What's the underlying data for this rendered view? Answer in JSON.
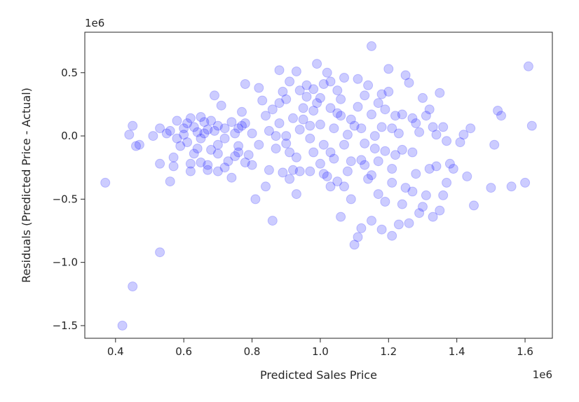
{
  "chart_data": {
    "type": "scatter",
    "title": "",
    "xlabel": "Predicted Sales Price",
    "ylabel": "Residuals (Predicted Price - Actual)",
    "x_offset_label": "1e6",
    "y_offset_label": "1e6",
    "xlim": [
      0.31,
      1.68
    ],
    "ylim": [
      -1.6,
      0.82
    ],
    "xticks": [
      {
        "value": 0.4,
        "label": "0.4"
      },
      {
        "value": 0.6,
        "label": "0.6"
      },
      {
        "value": 0.8,
        "label": "0.8"
      },
      {
        "value": 1.0,
        "label": "1.0"
      },
      {
        "value": 1.2,
        "label": "1.2"
      },
      {
        "value": 1.4,
        "label": "1.4"
      },
      {
        "value": 1.6,
        "label": "1.6"
      }
    ],
    "yticks": [
      {
        "value": 0.5,
        "label": "0.5"
      },
      {
        "value": 0.0,
        "label": "0.0"
      },
      {
        "value": -0.5,
        "label": "−0.5"
      },
      {
        "value": -1.0,
        "label": "−1.0"
      },
      {
        "value": -1.5,
        "label": "−1.5"
      }
    ],
    "grid": false,
    "legend": "none",
    "point_color": "#0000ff",
    "point_alpha": 0.2,
    "series": [
      {
        "points": [
          [
            0.37,
            -0.37
          ],
          [
            0.42,
            -1.5
          ],
          [
            0.45,
            -1.19
          ],
          [
            0.53,
            -0.92
          ],
          [
            0.44,
            0.01
          ],
          [
            0.45,
            0.08
          ],
          [
            0.46,
            -0.08
          ],
          [
            0.47,
            -0.07
          ],
          [
            0.51,
            0.0
          ],
          [
            0.53,
            0.06
          ],
          [
            0.53,
            -0.22
          ],
          [
            0.55,
            0.02
          ],
          [
            0.56,
            0.04
          ],
          [
            0.56,
            -0.36
          ],
          [
            0.57,
            -0.24
          ],
          [
            0.58,
            0.12
          ],
          [
            0.59,
            -0.08
          ],
          [
            0.6,
            0.01
          ],
          [
            0.61,
            0.1
          ],
          [
            0.62,
            -0.22
          ],
          [
            0.62,
            0.14
          ],
          [
            0.63,
            -0.14
          ],
          [
            0.64,
            0.03
          ],
          [
            0.65,
            -0.02
          ],
          [
            0.65,
            -0.21
          ],
          [
            0.66,
            0.11
          ],
          [
            0.67,
            -0.27
          ],
          [
            0.67,
            -0.23
          ],
          [
            0.68,
            -0.11
          ],
          [
            0.69,
            0.04
          ],
          [
            0.69,
            0.32
          ],
          [
            0.7,
            0.08
          ],
          [
            0.7,
            -0.07
          ],
          [
            0.71,
            0.24
          ],
          [
            0.72,
            0.06
          ],
          [
            0.73,
            -0.2
          ],
          [
            0.74,
            -0.33
          ],
          [
            0.74,
            0.11
          ],
          [
            0.75,
            0.02
          ],
          [
            0.76,
            -0.13
          ],
          [
            0.77,
            0.08
          ],
          [
            0.77,
            0.19
          ],
          [
            0.78,
            -0.21
          ],
          [
            0.78,
            0.41
          ],
          [
            0.79,
            -0.15
          ],
          [
            0.6,
            0.06
          ],
          [
            0.61,
            -0.05
          ],
          [
            0.63,
            0.07
          ],
          [
            0.64,
            -0.1
          ],
          [
            0.66,
            0.02
          ],
          [
            0.68,
            0.12
          ],
          [
            0.7,
            -0.14
          ],
          [
            0.72,
            -0.02
          ],
          [
            0.75,
            -0.16
          ],
          [
            0.57,
            -0.17
          ],
          [
            0.58,
            -0.02
          ],
          [
            0.62,
            -0.28
          ],
          [
            0.65,
            0.15
          ],
          [
            0.67,
            0.05
          ],
          [
            0.7,
            -0.28
          ],
          [
            0.72,
            -0.25
          ],
          [
            0.76,
            0.06
          ],
          [
            0.78,
            0.1
          ],
          [
            0.76,
            -0.08
          ],
          [
            0.8,
            -0.23
          ],
          [
            0.8,
            0.02
          ],
          [
            0.81,
            -0.5
          ],
          [
            0.82,
            0.38
          ],
          [
            0.83,
            0.28
          ],
          [
            0.84,
            -0.4
          ],
          [
            0.85,
            0.04
          ],
          [
            0.86,
            -0.67
          ],
          [
            0.86,
            0.21
          ],
          [
            0.87,
            0.0
          ],
          [
            0.88,
            0.52
          ],
          [
            0.88,
            0.1
          ],
          [
            0.89,
            -0.29
          ],
          [
            0.89,
            0.35
          ],
          [
            0.9,
            0.29
          ],
          [
            0.9,
            -0.06
          ],
          [
            0.91,
            0.43
          ],
          [
            0.91,
            -0.34
          ],
          [
            0.92,
            0.14
          ],
          [
            0.92,
            -0.27
          ],
          [
            0.93,
            0.51
          ],
          [
            0.93,
            -0.46
          ],
          [
            0.94,
            0.36
          ],
          [
            0.94,
            -0.28
          ],
          [
            0.95,
            0.13
          ],
          [
            0.95,
            0.22
          ],
          [
            0.96,
            0.4
          ],
          [
            0.97,
            -0.02
          ],
          [
            0.97,
            0.08
          ],
          [
            0.98,
            0.37
          ],
          [
            0.98,
            -0.13
          ],
          [
            0.99,
            0.26
          ],
          [
            0.99,
            0.57
          ],
          [
            1.0,
            -0.22
          ],
          [
            1.0,
            0.09
          ],
          [
            1.01,
            0.41
          ],
          [
            1.01,
            -0.07
          ],
          [
            1.02,
            0.5
          ],
          [
            1.02,
            -0.32
          ],
          [
            1.03,
            0.22
          ],
          [
            1.03,
            0.43
          ],
          [
            1.04,
            -0.18
          ],
          [
            1.04,
            0.06
          ],
          [
            1.05,
            -0.36
          ],
          [
            1.05,
            0.36
          ],
          [
            1.06,
            -0.64
          ],
          [
            1.06,
            0.16
          ],
          [
            1.07,
            -0.4
          ],
          [
            1.07,
            0.46
          ],
          [
            1.08,
            -0.28
          ],
          [
            1.08,
            0.01
          ],
          [
            1.09,
            -0.2
          ],
          [
            1.1,
            -0.86
          ],
          [
            1.1,
            0.08
          ],
          [
            1.11,
            -0.8
          ],
          [
            1.11,
            0.45
          ],
          [
            1.12,
            -0.19
          ],
          [
            1.12,
            -0.73
          ],
          [
            1.13,
            -0.06
          ],
          [
            1.13,
            0.32
          ],
          [
            1.14,
            -0.34
          ],
          [
            1.14,
            0.4
          ],
          [
            1.15,
            0.71
          ],
          [
            1.15,
            -0.67
          ],
          [
            1.16,
            -0.1
          ],
          [
            1.16,
            0.0
          ],
          [
            1.17,
            -0.46
          ],
          [
            1.17,
            0.26
          ],
          [
            1.18,
            -0.74
          ],
          [
            1.18,
            0.07
          ],
          [
            1.19,
            -0.52
          ],
          [
            1.19,
            -0.12
          ],
          [
            1.2,
            0.53
          ],
          [
            1.2,
            0.35
          ],
          [
            1.21,
            -0.79
          ],
          [
            1.21,
            -0.26
          ],
          [
            1.22,
            -0.15
          ],
          [
            1.22,
            0.16
          ],
          [
            1.23,
            -0.7
          ],
          [
            1.23,
            0.02
          ],
          [
            1.24,
            -0.54
          ],
          [
            1.24,
            -0.11
          ],
          [
            1.25,
            0.48
          ],
          [
            1.25,
            -0.41
          ],
          [
            1.26,
            0.42
          ],
          [
            1.26,
            -0.69
          ],
          [
            1.27,
            0.14
          ],
          [
            1.27,
            -0.44
          ],
          [
            1.28,
            0.1
          ],
          [
            1.28,
            -0.3
          ],
          [
            1.29,
            -0.61
          ],
          [
            1.29,
            0.03
          ],
          [
            1.3,
            0.3
          ],
          [
            1.3,
            -0.56
          ],
          [
            1.31,
            0.16
          ],
          [
            1.31,
            -0.47
          ],
          [
            1.32,
            0.21
          ],
          [
            1.32,
            -0.26
          ],
          [
            1.33,
            0.07
          ],
          [
            1.33,
            -0.64
          ],
          [
            1.34,
            -0.24
          ],
          [
            1.34,
            0.01
          ],
          [
            1.35,
            0.34
          ],
          [
            1.35,
            -0.59
          ],
          [
            1.36,
            -0.47
          ],
          [
            1.36,
            0.07
          ],
          [
            1.37,
            -0.37
          ],
          [
            1.37,
            -0.04
          ],
          [
            1.38,
            -0.22
          ],
          [
            1.39,
            -0.26
          ],
          [
            1.41,
            -0.05
          ],
          [
            1.42,
            0.01
          ],
          [
            1.43,
            -0.32
          ],
          [
            1.44,
            0.06
          ],
          [
            1.45,
            -0.55
          ],
          [
            1.5,
            -0.41
          ],
          [
            1.51,
            -0.07
          ],
          [
            1.52,
            0.2
          ],
          [
            1.53,
            0.16
          ],
          [
            1.56,
            -0.4
          ],
          [
            1.6,
            -0.37
          ],
          [
            1.61,
            0.55
          ],
          [
            1.62,
            0.08
          ],
          [
            0.84,
            0.16
          ],
          [
            0.87,
            -0.1
          ],
          [
            0.9,
            0.0
          ],
          [
            0.93,
            -0.17
          ],
          [
            0.96,
            0.31
          ],
          [
            0.98,
            0.2
          ],
          [
            1.01,
            -0.3
          ],
          [
            1.03,
            -0.13
          ],
          [
            1.05,
            0.18
          ],
          [
            1.07,
            -0.07
          ],
          [
            1.09,
            0.13
          ],
          [
            1.11,
            0.23
          ],
          [
            1.13,
            -0.23
          ],
          [
            1.15,
            0.17
          ],
          [
            1.17,
            -0.2
          ],
          [
            1.19,
            0.21
          ],
          [
            1.21,
            0.06
          ],
          [
            0.82,
            -0.07
          ],
          [
            0.85,
            -0.27
          ],
          [
            0.88,
            0.26
          ],
          [
            0.91,
            -0.13
          ],
          [
            0.94,
            0.05
          ],
          [
            0.97,
            -0.28
          ],
          [
            1.0,
            0.3
          ],
          [
            1.03,
            -0.4
          ],
          [
            1.06,
            0.29
          ],
          [
            1.09,
            -0.5
          ],
          [
            1.12,
            0.06
          ],
          [
            1.15,
            -0.31
          ],
          [
            1.18,
            0.33
          ],
          [
            1.21,
            -0.37
          ],
          [
            1.24,
            0.17
          ],
          [
            1.27,
            -0.13
          ]
        ]
      }
    ]
  }
}
